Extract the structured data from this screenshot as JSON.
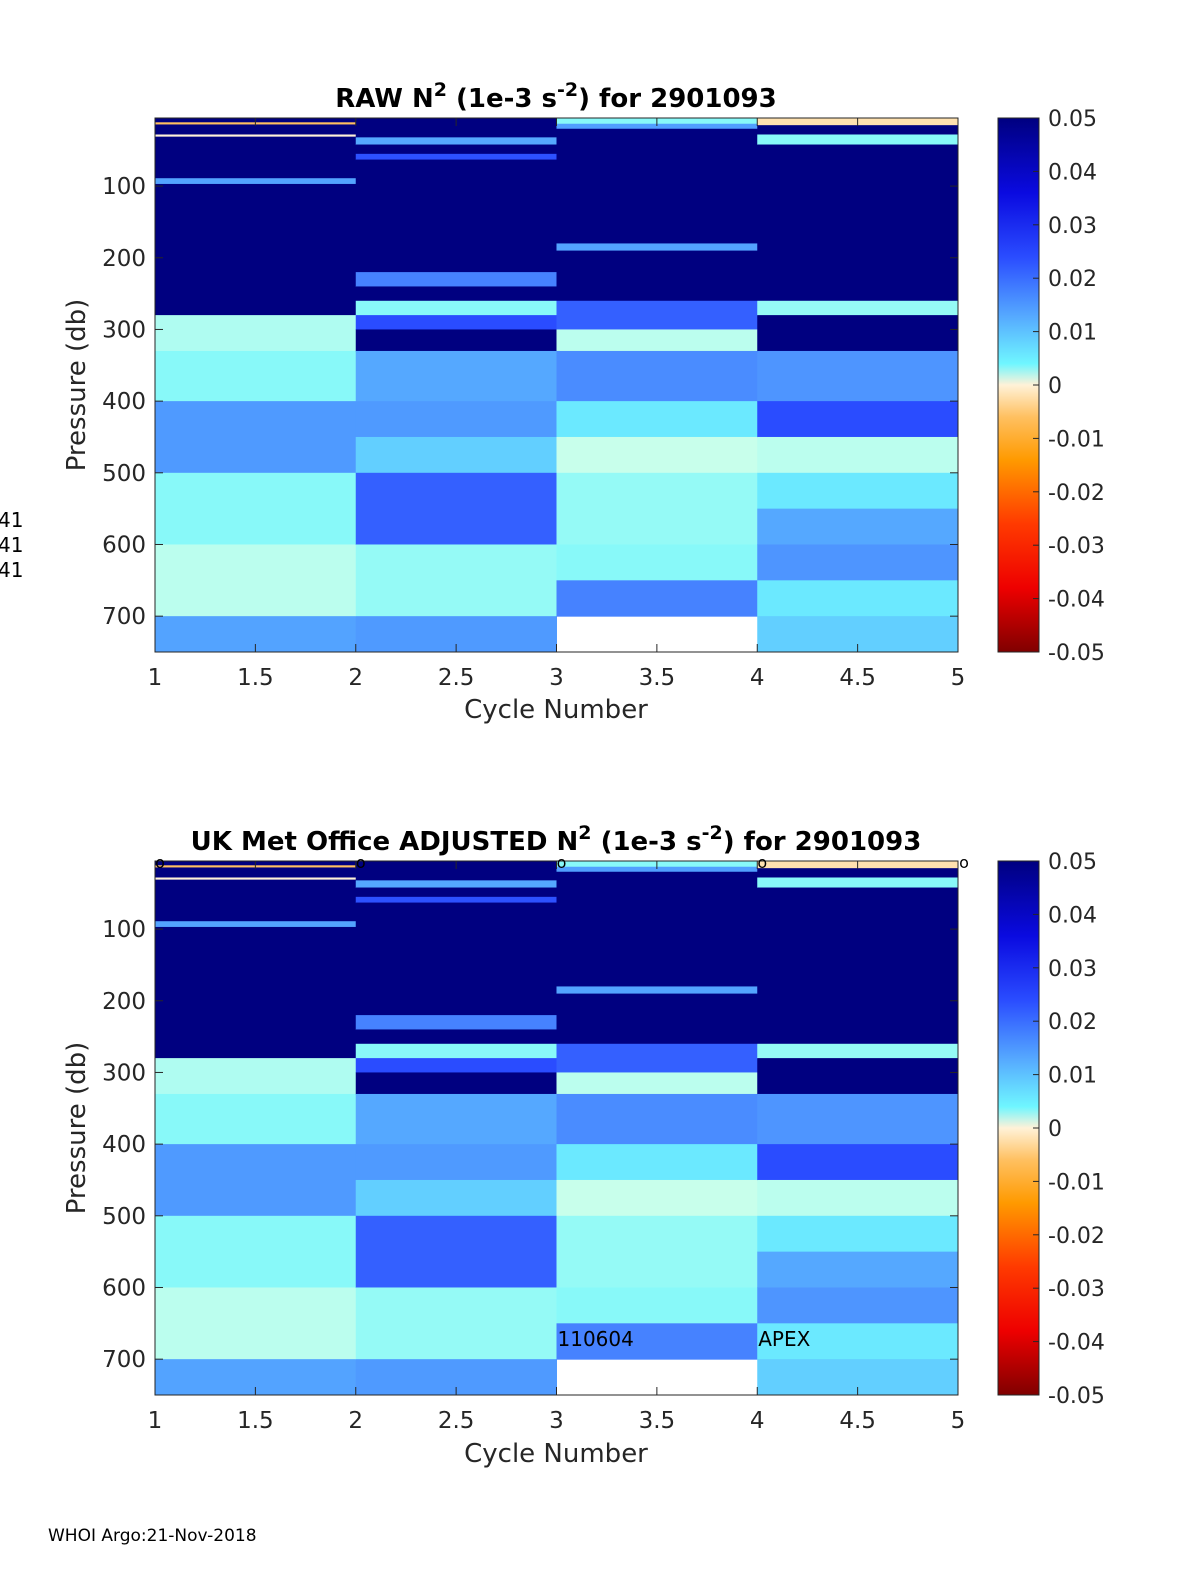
{
  "footer": "WHOI Argo:21-Nov-2018",
  "left_margin_labels": [
    "41",
    "41",
    "41"
  ],
  "chart_data": [
    {
      "type": "heatmap",
      "title": {
        "main": "RAW N",
        "sup1": "2",
        "mid": " (1e-3 s",
        "sup2": "-2",
        "end": ") for 2901093"
      },
      "xlabel": "Cycle Number",
      "ylabel": "Pressure (db)",
      "xlim": [
        1,
        5
      ],
      "ylim": [
        5,
        750
      ],
      "y_reversed": true,
      "xticks": [
        "1",
        "1.5",
        "2",
        "2.5",
        "3",
        "3.5",
        "4",
        "4.5",
        "5"
      ],
      "yticks": [
        "100",
        "200",
        "300",
        "400",
        "500",
        "600",
        "700"
      ],
      "ytick_values": [
        100,
        200,
        300,
        400,
        500,
        600,
        700
      ],
      "clim": [
        -0.05,
        0.05
      ],
      "colorbar_ticks": [
        "0.05",
        "0.04",
        "0.03",
        "0.02",
        "0.01",
        "0",
        "-0.01",
        "-0.02",
        "-0.03",
        "-0.04",
        "-0.05"
      ],
      "colorbar_tick_values": [
        0.05,
        0.04,
        0.03,
        0.02,
        0.01,
        0,
        -0.01,
        -0.02,
        -0.03,
        -0.04,
        -0.05
      ],
      "annotations": [],
      "show_circles": false
    },
    {
      "type": "heatmap",
      "title": {
        "main": "UK Met Office  ADJUSTED N",
        "sup1": "2",
        "mid": " (1e-3 s",
        "sup2": "-2",
        "end": ") for 2901093"
      },
      "xlabel": "Cycle Number",
      "ylabel": "Pressure (db)",
      "xlim": [
        1,
        5
      ],
      "ylim": [
        5,
        750
      ],
      "y_reversed": true,
      "xticks": [
        "1",
        "1.5",
        "2",
        "2.5",
        "3",
        "3.5",
        "4",
        "4.5",
        "5"
      ],
      "yticks": [
        "100",
        "200",
        "300",
        "400",
        "500",
        "600",
        "700"
      ],
      "ytick_values": [
        100,
        200,
        300,
        400,
        500,
        600,
        700
      ],
      "clim": [
        -0.05,
        0.05
      ],
      "colorbar_ticks": [
        "0.05",
        "0.04",
        "0.03",
        "0.02",
        "0.01",
        "0",
        "-0.01",
        "-0.02",
        "-0.03",
        "-0.04",
        "-0.05"
      ],
      "colorbar_tick_values": [
        0.05,
        0.04,
        0.03,
        0.02,
        0.01,
        0,
        -0.01,
        -0.02,
        -0.03,
        -0.04,
        -0.05
      ],
      "annotations": [
        {
          "text": "110604",
          "x": 3.0,
          "y": 672
        },
        {
          "text": "APEX",
          "x": 4.0,
          "y": 672
        }
      ],
      "circle_marker": "o",
      "show_circles": true
    }
  ],
  "profiles": [
    {
      "cycle": 1,
      "x0": 1,
      "x1": 2,
      "segments": [
        {
          "p0": 5,
          "p1": 11,
          "v": 0.05
        },
        {
          "p0": 11,
          "p1": 14,
          "v": -0.006
        },
        {
          "p0": 14,
          "p1": 28,
          "v": 0.05
        },
        {
          "p0": 28,
          "p1": 31,
          "v": 0.0
        },
        {
          "p0": 31,
          "p1": 89,
          "v": 0.05
        },
        {
          "p0": 89,
          "p1": 97,
          "v": 0.019
        },
        {
          "p0": 97,
          "p1": 280,
          "v": 0.05
        },
        {
          "p0": 280,
          "p1": 330,
          "v": 0.007
        },
        {
          "p0": 330,
          "p1": 400,
          "v": 0.01
        },
        {
          "p0": 400,
          "p1": 500,
          "v": 0.021
        },
        {
          "p0": 500,
          "p1": 600,
          "v": 0.01
        },
        {
          "p0": 600,
          "p1": 700,
          "v": 0.006
        },
        {
          "p0": 700,
          "p1": 750,
          "v": 0.019
        }
      ]
    },
    {
      "cycle": 2,
      "x0": 2,
      "x1": 3,
      "segments": [
        {
          "p0": 5,
          "p1": 32,
          "v": 0.05
        },
        {
          "p0": 32,
          "p1": 42,
          "v": 0.018
        },
        {
          "p0": 42,
          "p1": 55,
          "v": 0.05
        },
        {
          "p0": 55,
          "p1": 63,
          "v": 0.036
        },
        {
          "p0": 63,
          "p1": 220,
          "v": 0.05
        },
        {
          "p0": 220,
          "p1": 240,
          "v": 0.026
        },
        {
          "p0": 240,
          "p1": 260,
          "v": 0.05
        },
        {
          "p0": 260,
          "p1": 280,
          "v": 0.01
        },
        {
          "p0": 280,
          "p1": 300,
          "v": 0.037
        },
        {
          "p0": 300,
          "p1": 330,
          "v": 0.05
        },
        {
          "p0": 330,
          "p1": 400,
          "v": 0.018
        },
        {
          "p0": 400,
          "p1": 450,
          "v": 0.021
        },
        {
          "p0": 450,
          "p1": 500,
          "v": 0.015
        },
        {
          "p0": 500,
          "p1": 600,
          "v": 0.033
        },
        {
          "p0": 600,
          "p1": 700,
          "v": 0.009
        },
        {
          "p0": 700,
          "p1": 750,
          "v": 0.021
        }
      ]
    },
    {
      "cycle": 3,
      "x0": 3,
      "x1": 4,
      "segments": [
        {
          "p0": 5,
          "p1": 13,
          "v": 0.01
        },
        {
          "p0": 13,
          "p1": 20,
          "v": 0.02
        },
        {
          "p0": 20,
          "p1": 180,
          "v": 0.05
        },
        {
          "p0": 180,
          "p1": 190,
          "v": 0.019
        },
        {
          "p0": 190,
          "p1": 260,
          "v": 0.05
        },
        {
          "p0": 260,
          "p1": 300,
          "v": 0.033
        },
        {
          "p0": 300,
          "p1": 330,
          "v": 0.006
        },
        {
          "p0": 330,
          "p1": 400,
          "v": 0.024
        },
        {
          "p0": 400,
          "p1": 450,
          "v": 0.013
        },
        {
          "p0": 450,
          "p1": 500,
          "v": 0.005
        },
        {
          "p0": 500,
          "p1": 600,
          "v": 0.009
        },
        {
          "p0": 600,
          "p1": 650,
          "v": 0.01
        },
        {
          "p0": 650,
          "p1": 700,
          "v": 0.026
        }
      ]
    },
    {
      "cycle": 4,
      "x0": 4,
      "x1": 5,
      "segments": [
        {
          "p0": 5,
          "p1": 15,
          "v": -0.002
        },
        {
          "p0": 15,
          "p1": 28,
          "v": 0.05
        },
        {
          "p0": 28,
          "p1": 42,
          "v": 0.01
        },
        {
          "p0": 42,
          "p1": 260,
          "v": 0.05
        },
        {
          "p0": 260,
          "p1": 280,
          "v": 0.009
        },
        {
          "p0": 280,
          "p1": 330,
          "v": 0.05
        },
        {
          "p0": 330,
          "p1": 400,
          "v": 0.022
        },
        {
          "p0": 400,
          "p1": 450,
          "v": 0.037
        },
        {
          "p0": 450,
          "p1": 500,
          "v": 0.006
        },
        {
          "p0": 500,
          "p1": 550,
          "v": 0.013
        },
        {
          "p0": 550,
          "p1": 600,
          "v": 0.018
        },
        {
          "p0": 600,
          "p1": 650,
          "v": 0.022
        },
        {
          "p0": 650,
          "p1": 700,
          "v": 0.013
        },
        {
          "p0": 700,
          "p1": 750,
          "v": 0.015
        }
      ]
    }
  ]
}
